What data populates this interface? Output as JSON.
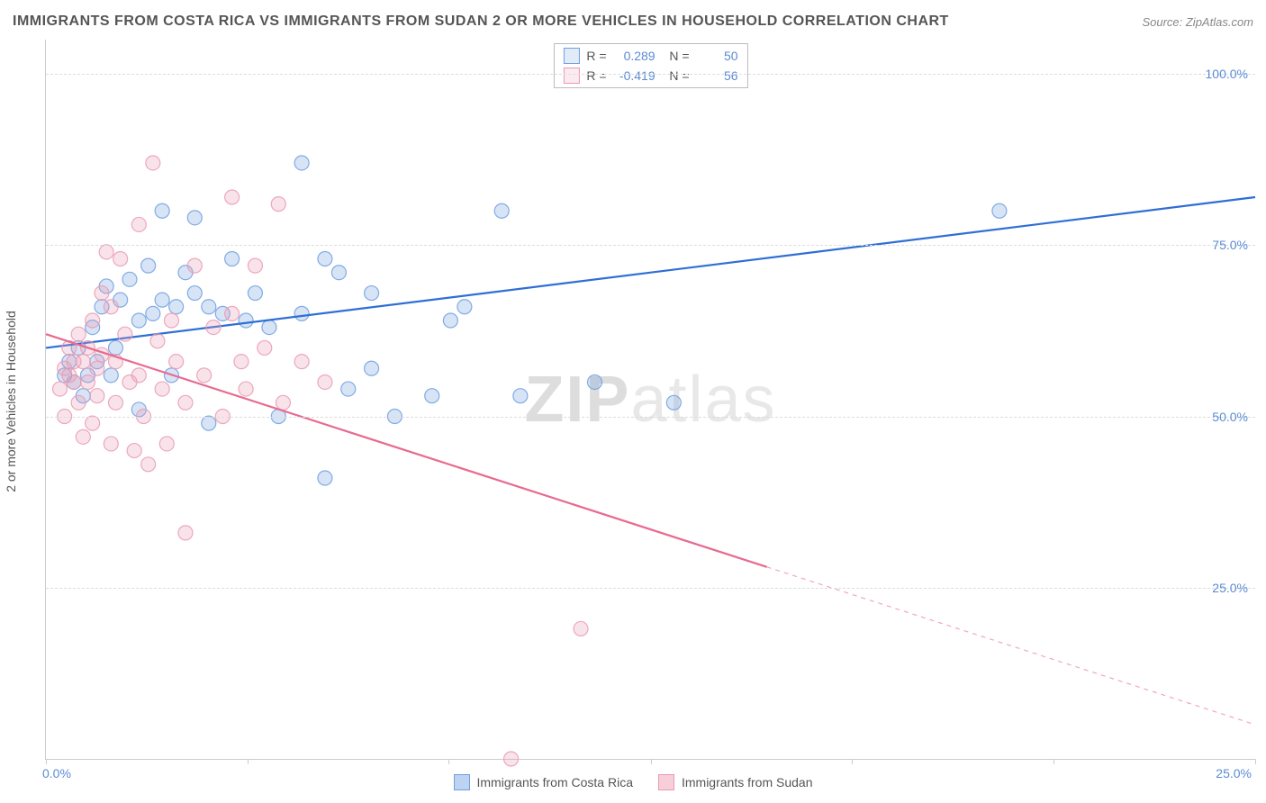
{
  "title": "IMMIGRANTS FROM COSTA RICA VS IMMIGRANTS FROM SUDAN 2 OR MORE VEHICLES IN HOUSEHOLD CORRELATION CHART",
  "source_label": "Source: ZipAtlas.com",
  "y_axis_label": "2 or more Vehicles in Household",
  "watermark": {
    "bold": "ZIP",
    "rest": "atlas"
  },
  "chart": {
    "type": "scatter",
    "background_color": "#ffffff",
    "grid_color": "#dddddd",
    "axis_color": "#cccccc",
    "tick_label_color": "#5b8bd4",
    "axis_label_color": "#555555",
    "xlim": [
      0,
      26
    ],
    "ylim": [
      0,
      105
    ],
    "ytick_positions": [
      25,
      50,
      75,
      100
    ],
    "ytick_labels": [
      "25.0%",
      "50.0%",
      "75.0%",
      "100.0%"
    ],
    "xtick_positions": [
      0,
      4.33,
      8.66,
      13,
      17.33,
      21.66,
      26
    ],
    "xlabel_start": "0.0%",
    "xlabel_end": "25.0%",
    "marker_radius": 8,
    "marker_fill_opacity": 0.28,
    "marker_stroke_opacity": 0.85,
    "line_width": 2.2,
    "series": [
      {
        "name": "Immigrants from Costa Rica",
        "color": "#6f9fe0",
        "line_color": "#2e6fd6",
        "R": "0.289",
        "N": "50",
        "trend": {
          "x0": 0,
          "y0": 60,
          "x1": 26,
          "y1": 82,
          "dashed_from_x": null
        },
        "points": [
          [
            0.4,
            56
          ],
          [
            0.5,
            58
          ],
          [
            0.6,
            55
          ],
          [
            0.7,
            60
          ],
          [
            0.8,
            53
          ],
          [
            0.9,
            56
          ],
          [
            1.0,
            63
          ],
          [
            1.1,
            58
          ],
          [
            1.2,
            66
          ],
          [
            1.3,
            69
          ],
          [
            1.4,
            56
          ],
          [
            1.5,
            60
          ],
          [
            1.6,
            67
          ],
          [
            1.8,
            70
          ],
          [
            2.0,
            51
          ],
          [
            2.0,
            64
          ],
          [
            2.2,
            72
          ],
          [
            2.3,
            65
          ],
          [
            2.5,
            80
          ],
          [
            2.5,
            67
          ],
          [
            2.7,
            56
          ],
          [
            2.8,
            66
          ],
          [
            3.0,
            71
          ],
          [
            3.2,
            79
          ],
          [
            3.2,
            68
          ],
          [
            3.5,
            49
          ],
          [
            3.5,
            66
          ],
          [
            3.8,
            65
          ],
          [
            4.0,
            73
          ],
          [
            4.3,
            64
          ],
          [
            4.5,
            68
          ],
          [
            4.8,
            63
          ],
          [
            5.0,
            50
          ],
          [
            5.5,
            87
          ],
          [
            5.5,
            65
          ],
          [
            6.0,
            73
          ],
          [
            6.0,
            41
          ],
          [
            6.3,
            71
          ],
          [
            6.5,
            54
          ],
          [
            7.0,
            57
          ],
          [
            7.0,
            68
          ],
          [
            7.5,
            50
          ],
          [
            8.3,
            53
          ],
          [
            8.7,
            64
          ],
          [
            9.0,
            66
          ],
          [
            9.8,
            80
          ],
          [
            10.2,
            53
          ],
          [
            11.8,
            55
          ],
          [
            13.5,
            52
          ],
          [
            20.5,
            80
          ]
        ]
      },
      {
        "name": "Immigrants from Sudan",
        "color": "#ea9ab2",
        "line_color": "#e86a8f",
        "R": "-0.419",
        "N": "56",
        "trend": {
          "x0": 0,
          "y0": 62,
          "x1": 26,
          "y1": 5,
          "dashed_from_x": 15.5
        },
        "points": [
          [
            0.3,
            54
          ],
          [
            0.4,
            57
          ],
          [
            0.4,
            50
          ],
          [
            0.5,
            56
          ],
          [
            0.5,
            60
          ],
          [
            0.6,
            55
          ],
          [
            0.6,
            58
          ],
          [
            0.7,
            52
          ],
          [
            0.7,
            62
          ],
          [
            0.8,
            58
          ],
          [
            0.8,
            47
          ],
          [
            0.9,
            55
          ],
          [
            0.9,
            60
          ],
          [
            1.0,
            64
          ],
          [
            1.0,
            49
          ],
          [
            1.1,
            57
          ],
          [
            1.1,
            53
          ],
          [
            1.2,
            59
          ],
          [
            1.2,
            68
          ],
          [
            1.3,
            74
          ],
          [
            1.4,
            66
          ],
          [
            1.4,
            46
          ],
          [
            1.5,
            58
          ],
          [
            1.5,
            52
          ],
          [
            1.6,
            73
          ],
          [
            1.7,
            62
          ],
          [
            1.8,
            55
          ],
          [
            1.9,
            45
          ],
          [
            2.0,
            78
          ],
          [
            2.0,
            56
          ],
          [
            2.1,
            50
          ],
          [
            2.2,
            43
          ],
          [
            2.3,
            87
          ],
          [
            2.4,
            61
          ],
          [
            2.5,
            54
          ],
          [
            2.6,
            46
          ],
          [
            2.7,
            64
          ],
          [
            2.8,
            58
          ],
          [
            3.0,
            52
          ],
          [
            3.0,
            33
          ],
          [
            3.2,
            72
          ],
          [
            3.4,
            56
          ],
          [
            3.6,
            63
          ],
          [
            3.8,
            50
          ],
          [
            4.0,
            65
          ],
          [
            4.0,
            82
          ],
          [
            4.2,
            58
          ],
          [
            4.3,
            54
          ],
          [
            4.5,
            72
          ],
          [
            4.7,
            60
          ],
          [
            5.0,
            81
          ],
          [
            5.1,
            52
          ],
          [
            5.5,
            58
          ],
          [
            6.0,
            55
          ],
          [
            10.0,
            0
          ],
          [
            11.5,
            19
          ]
        ]
      }
    ]
  },
  "bottom_legend": [
    {
      "label": "Immigrants from Costa Rica",
      "fill": "#bcd3f2",
      "stroke": "#6f9fe0"
    },
    {
      "label": "Immigrants from Sudan",
      "fill": "#f6cfd9",
      "stroke": "#ea9ab2"
    }
  ]
}
